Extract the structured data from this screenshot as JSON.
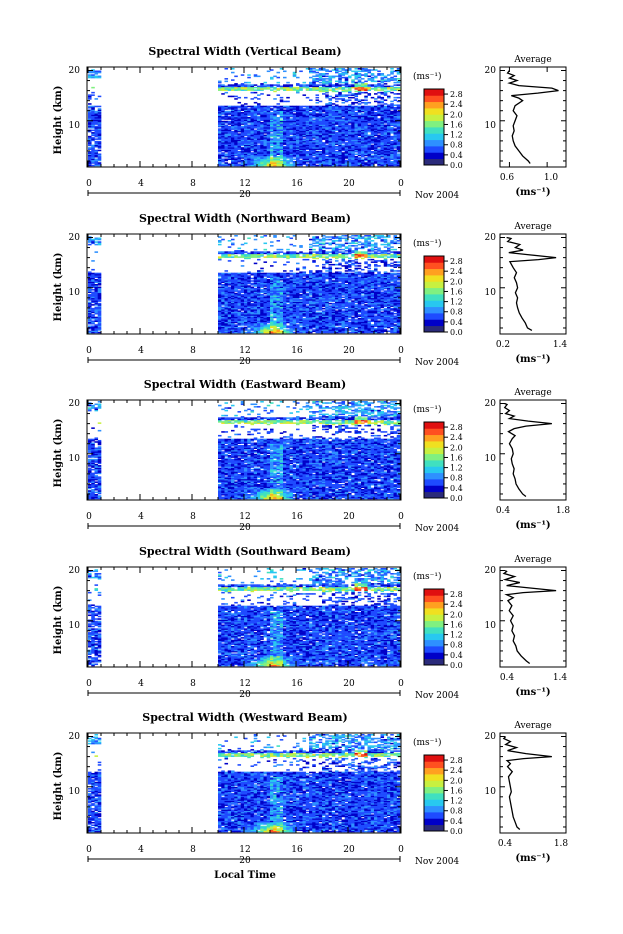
{
  "figure": {
    "xlabel": "Local Time",
    "date_label": "Nov 2004",
    "day_label": "20"
  },
  "colorbar": {
    "label": "(ms⁻¹)",
    "ticks": [
      "2.8",
      "2.4",
      "2.0",
      "1.6",
      "1.2",
      "0.8",
      "0.4",
      "0.0"
    ],
    "colors": [
      "#2a2a7a",
      "#0000c8",
      "#1e4bff",
      "#2e90ff",
      "#28c8f0",
      "#40e0c0",
      "#80f080",
      "#c8f040",
      "#f0e020",
      "#ffa020",
      "#ff5020",
      "#e01010"
    ]
  },
  "chart_data": [
    {
      "type": "heatmap",
      "title": "Spectral Width (Vertical Beam)",
      "ylabel": "Height (km)",
      "x_ticks": [
        "0",
        "4",
        "8",
        "12",
        "16",
        "20",
        "0"
      ],
      "xlim": [
        0,
        24
      ],
      "y_ticks": [
        "20",
        "10"
      ],
      "ylim": [
        1,
        20.5
      ],
      "value_range": [
        0.0,
        3.0
      ],
      "data_gap_hours": [
        1,
        10
      ],
      "average": {
        "title": "Average",
        "xlabel": "(ms⁻¹)",
        "x_ticks": [
          "0.6",
          "1.0"
        ],
        "xlim": [
          0.5,
          1.2
        ],
        "y_ticks": [
          "20",
          "10"
        ],
        "profile": [
          [
            0.82,
            1.5
          ],
          [
            0.8,
            2
          ],
          [
            0.74,
            3
          ],
          [
            0.7,
            4
          ],
          [
            0.66,
            5
          ],
          [
            0.64,
            6
          ],
          [
            0.63,
            7
          ],
          [
            0.65,
            8
          ],
          [
            0.64,
            9
          ],
          [
            0.66,
            10
          ],
          [
            0.68,
            11
          ],
          [
            0.64,
            12
          ],
          [
            0.66,
            13
          ],
          [
            0.74,
            14
          ],
          [
            0.7,
            14.5
          ],
          [
            0.62,
            15
          ],
          [
            0.9,
            15.5
          ],
          [
            1.12,
            16
          ],
          [
            1.05,
            16.5
          ],
          [
            0.7,
            17
          ],
          [
            0.6,
            17.5
          ],
          [
            0.68,
            18
          ],
          [
            0.6,
            18.5
          ],
          [
            0.65,
            19
          ],
          [
            0.58,
            19.5
          ],
          [
            0.6,
            20
          ]
        ]
      }
    },
    {
      "type": "heatmap",
      "title": "Spectral Width (Northward Beam)",
      "ylabel": "Height (km)",
      "x_ticks": [
        "0",
        "4",
        "8",
        "12",
        "16",
        "20",
        "0"
      ],
      "xlim": [
        0,
        24
      ],
      "y_ticks": [
        "20",
        "10"
      ],
      "ylim": [
        1,
        20.5
      ],
      "value_range": [
        0.0,
        3.0
      ],
      "data_gap_hours": [
        1,
        10
      ],
      "average": {
        "title": "Average",
        "xlabel": "(ms⁻¹)",
        "x_ticks": [
          "0.2",
          "1.4"
        ],
        "xlim": [
          0.2,
          1.4
        ],
        "y_ticks": [
          "20",
          "10"
        ],
        "profile": [
          [
            0.78,
            1.5
          ],
          [
            0.7,
            2
          ],
          [
            0.66,
            3
          ],
          [
            0.6,
            4
          ],
          [
            0.55,
            5
          ],
          [
            0.52,
            6
          ],
          [
            0.5,
            7
          ],
          [
            0.52,
            8
          ],
          [
            0.48,
            9
          ],
          [
            0.52,
            10
          ],
          [
            0.5,
            11
          ],
          [
            0.46,
            12
          ],
          [
            0.5,
            13
          ],
          [
            0.44,
            14
          ],
          [
            0.4,
            14.8
          ],
          [
            0.38,
            15.2
          ],
          [
            0.9,
            15.6
          ],
          [
            1.22,
            16
          ],
          [
            0.7,
            16.6
          ],
          [
            0.36,
            17
          ],
          [
            0.62,
            17.5
          ],
          [
            0.48,
            18
          ],
          [
            0.56,
            18.6
          ],
          [
            0.34,
            19.2
          ],
          [
            0.4,
            19.8
          ],
          [
            0.32,
            20
          ]
        ]
      }
    },
    {
      "type": "heatmap",
      "title": "Spectral Width (Eastward Beam)",
      "ylabel": "Height (km)",
      "x_ticks": [
        "0",
        "4",
        "8",
        "12",
        "16",
        "20",
        "0"
      ],
      "xlim": [
        0,
        24
      ],
      "y_ticks": [
        "20",
        "10"
      ],
      "ylim": [
        1,
        20.5
      ],
      "value_range": [
        0.0,
        3.0
      ],
      "data_gap_hours": [
        1,
        10
      ],
      "average": {
        "title": "Average",
        "xlabel": "(ms⁻¹)",
        "x_ticks": [
          "0.4",
          "1.8"
        ],
        "xlim": [
          0.4,
          1.8
        ],
        "y_ticks": [
          "20",
          "10"
        ],
        "profile": [
          [
            0.95,
            1.5
          ],
          [
            0.88,
            2
          ],
          [
            0.8,
            3
          ],
          [
            0.74,
            4
          ],
          [
            0.72,
            5
          ],
          [
            0.68,
            6
          ],
          [
            0.7,
            7
          ],
          [
            0.66,
            8
          ],
          [
            0.64,
            9
          ],
          [
            0.68,
            10
          ],
          [
            0.66,
            11
          ],
          [
            0.6,
            12
          ],
          [
            0.66,
            13
          ],
          [
            0.72,
            13.6
          ],
          [
            0.58,
            14.4
          ],
          [
            0.7,
            15
          ],
          [
            0.95,
            15.5
          ],
          [
            1.5,
            16
          ],
          [
            1.0,
            16.5
          ],
          [
            0.6,
            17
          ],
          [
            0.7,
            17.5
          ],
          [
            0.52,
            18
          ],
          [
            0.6,
            18.6
          ],
          [
            0.5,
            19.2
          ],
          [
            0.55,
            19.8
          ],
          [
            0.5,
            20
          ]
        ]
      }
    },
    {
      "type": "heatmap",
      "title": "Spectral Width (Southward Beam)",
      "ylabel": "Height (km)",
      "x_ticks": [
        "0",
        "4",
        "8",
        "12",
        "16",
        "20",
        "0"
      ],
      "xlim": [
        0,
        24
      ],
      "y_ticks": [
        "20",
        "10"
      ],
      "ylim": [
        1,
        20.5
      ],
      "value_range": [
        0.0,
        3.0
      ],
      "data_gap_hours": [
        1,
        10
      ],
      "average": {
        "title": "Average",
        "xlabel": "(ms⁻¹)",
        "x_ticks": [
          "0.4",
          "1.4"
        ],
        "xlim": [
          0.4,
          1.4
        ],
        "y_ticks": [
          "20",
          "10"
        ],
        "profile": [
          [
            0.85,
            1.5
          ],
          [
            0.8,
            2
          ],
          [
            0.72,
            3
          ],
          [
            0.66,
            4
          ],
          [
            0.64,
            5
          ],
          [
            0.6,
            6
          ],
          [
            0.62,
            7
          ],
          [
            0.58,
            8
          ],
          [
            0.6,
            9
          ],
          [
            0.56,
            10
          ],
          [
            0.6,
            11
          ],
          [
            0.54,
            12
          ],
          [
            0.58,
            13
          ],
          [
            0.52,
            14
          ],
          [
            0.6,
            14.6
          ],
          [
            0.5,
            15.2
          ],
          [
            0.75,
            15.6
          ],
          [
            1.25,
            16
          ],
          [
            0.8,
            16.6
          ],
          [
            0.5,
            17
          ],
          [
            0.7,
            17.6
          ],
          [
            0.48,
            18.2
          ],
          [
            0.62,
            18.8
          ],
          [
            0.46,
            19.4
          ],
          [
            0.5,
            19.8
          ],
          [
            0.48,
            20
          ]
        ]
      }
    },
    {
      "type": "heatmap",
      "title": "Spectral Width (Westward Beam)",
      "ylabel": "Height (km)",
      "x_ticks": [
        "0",
        "4",
        "8",
        "12",
        "16",
        "20",
        "0"
      ],
      "xlim": [
        0,
        24
      ],
      "y_ticks": [
        "20",
        "10"
      ],
      "ylim": [
        1,
        20.5
      ],
      "value_range": [
        0.0,
        3.0
      ],
      "data_gap_hours": [
        1,
        10
      ],
      "average": {
        "title": "Average",
        "xlabel": "(ms⁻¹)",
        "x_ticks": [
          "0.4",
          "1.8"
        ],
        "xlim": [
          0.4,
          1.8
        ],
        "y_ticks": [
          "20",
          "10"
        ],
        "profile": [
          [
            0.82,
            1.5
          ],
          [
            0.76,
            2
          ],
          [
            0.72,
            3
          ],
          [
            0.68,
            4
          ],
          [
            0.66,
            5
          ],
          [
            0.64,
            6
          ],
          [
            0.62,
            7
          ],
          [
            0.6,
            8
          ],
          [
            0.64,
            9
          ],
          [
            0.62,
            10
          ],
          [
            0.6,
            11
          ],
          [
            0.58,
            12
          ],
          [
            0.66,
            13
          ],
          [
            0.56,
            14
          ],
          [
            0.62,
            14.6
          ],
          [
            0.55,
            15.2
          ],
          [
            0.9,
            15.6
          ],
          [
            1.5,
            16
          ],
          [
            0.95,
            16.6
          ],
          [
            0.56,
            17.2
          ],
          [
            0.75,
            17.8
          ],
          [
            0.52,
            18.4
          ],
          [
            0.62,
            19
          ],
          [
            0.48,
            19.6
          ],
          [
            0.52,
            20
          ]
        ]
      }
    }
  ]
}
